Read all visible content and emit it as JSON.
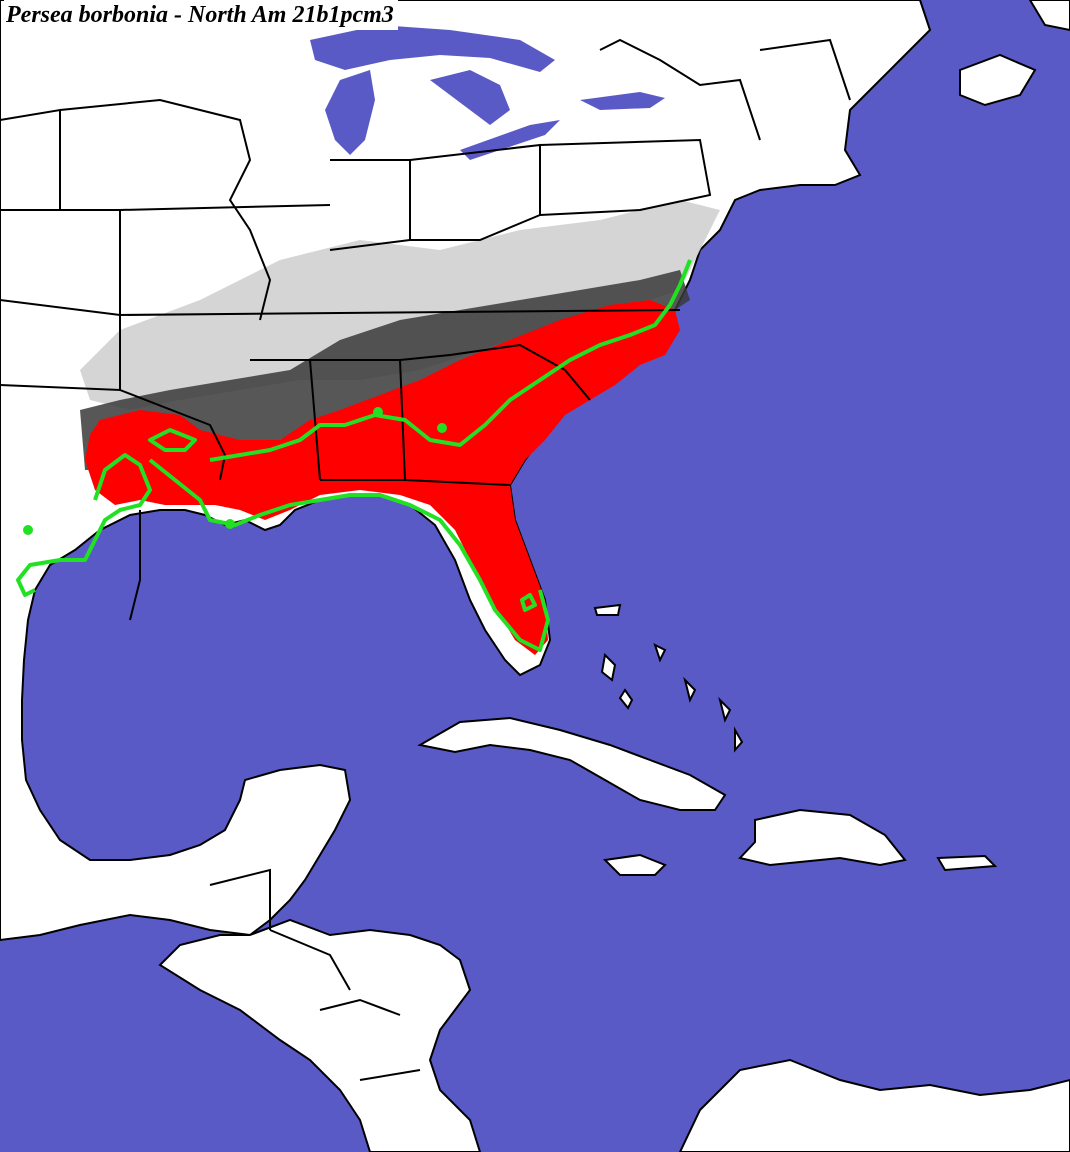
{
  "title": "Persea borbonia - North Am 21b1pcm3",
  "colors": {
    "ocean": "#5a5ac6",
    "land": "#ffffff",
    "borders": "#000000",
    "high_suitability": "#ff0000",
    "medium_suitability": "#3a3a3a",
    "low_suitability": "#bdbdbd",
    "range_outline": "#00e000"
  }
}
